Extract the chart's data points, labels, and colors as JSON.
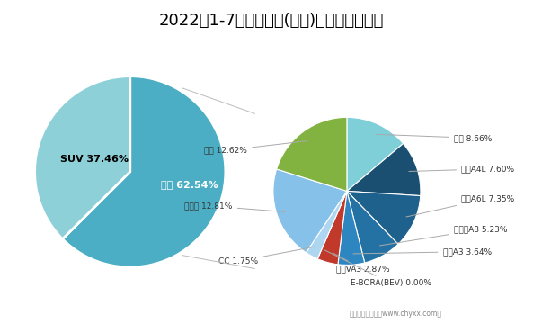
{
  "title": "2022年1-7月一汽大众(轿车)销量占比统计图",
  "title_fontsize": 13,
  "outer_labels": [
    "轿车",
    "SUV"
  ],
  "outer_values": [
    62.54,
    37.46
  ],
  "outer_colors": [
    "#4baec4",
    "#8dd0d8"
  ],
  "outer_label_texts": [
    "轿车 62.54%",
    "SUV 37.46%"
  ],
  "inner_labels": [
    "迈腾",
    "奥迪A4L",
    "奥迪A6L",
    "高尔夫A8",
    "奥迪A3",
    "捷达VA3",
    "E-BORA(BEV)",
    "CC",
    "新宝来",
    "速腾"
  ],
  "inner_values": [
    8.66,
    7.6,
    7.35,
    5.23,
    3.64,
    2.87,
    0.0,
    1.75,
    12.81,
    12.62
  ],
  "inner_colors": [
    "#7ecfd8",
    "#1b4f72",
    "#1f618d",
    "#2471a3",
    "#2e86c1",
    "#c0392b",
    "#1e8449",
    "#aed6f1",
    "#85c1e9",
    "#82b341"
  ],
  "inner_label_texts": [
    "迈腾 8.66%",
    "奥迪A4L 7.60%",
    "奥迪A6L 7.35%",
    "高尔夫A8 5.23%",
    "奥迪A3 3.64%",
    "捷达VA3 2.87%",
    "E-BORA(BEV) 0.00%",
    "CC 1.75%",
    "新宝来 12.81%",
    "速腾 12.62%"
  ],
  "footer": "制图：智研咨询（www.chyxx.com）",
  "background_color": "#ffffff"
}
